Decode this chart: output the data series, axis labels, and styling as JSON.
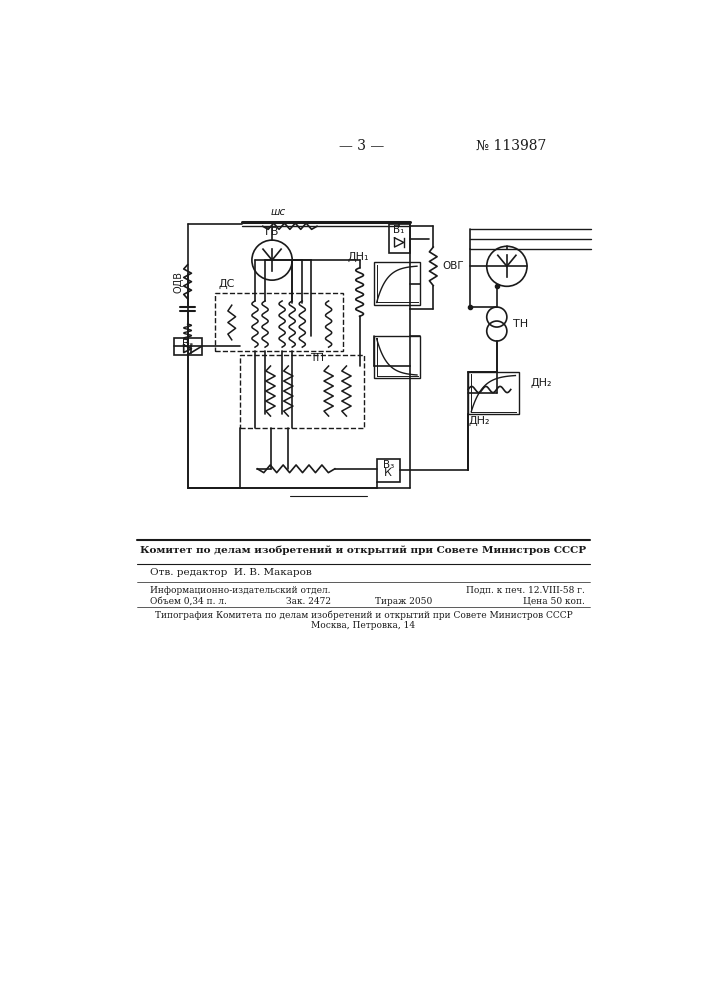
{
  "page_number": "— 3 —",
  "patent_number": "№ 113987",
  "bg_color": "#ffffff",
  "lc": "#1a1a1a",
  "bottom_text": {
    "line1": "Комитет по делам изобретений и открытий при Совете Министров СССР",
    "line2": "Отв. редактор  И. В. Макаров",
    "line3a": "Информационно-издательский отдел.",
    "line3b": "Подп. к печ. 12.VIII-58 г.",
    "line4a": "Объем 0,34 п. л.",
    "line4b": "Зак. 2472",
    "line4c": "Тираж 2050",
    "line4d": "Цена 50 коп.",
    "line5": "Типография Комитета по делам изобретений и открытий при Совете Министров СССР",
    "line6": "Москва, Петровка, 14"
  }
}
